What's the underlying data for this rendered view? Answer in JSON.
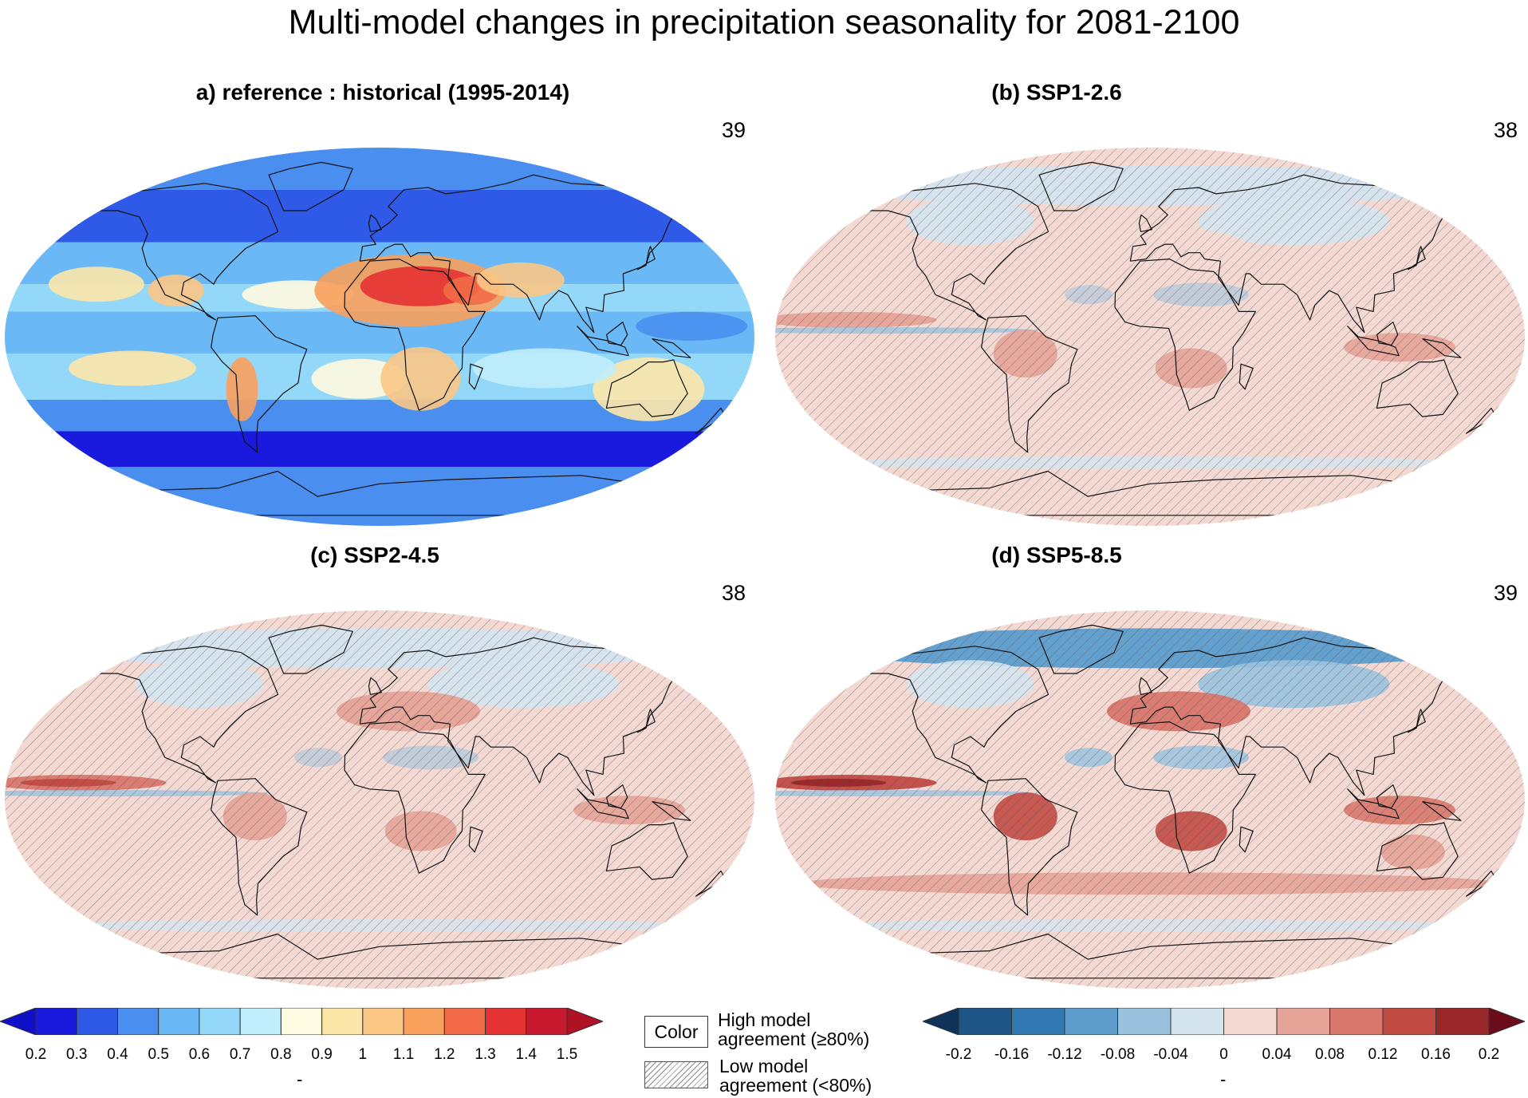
{
  "title": "Multi-model changes in precipitation seasonality for 2081-2100",
  "panels": [
    {
      "id": "a",
      "title": "a) reference : historical (1995-2014)",
      "count": "39",
      "style": "reference"
    },
    {
      "id": "b",
      "title": "(b) SSP1-2.6",
      "count": "38",
      "style": "change-weak"
    },
    {
      "id": "c",
      "title": "(c) SSP2-4.5",
      "count": "38",
      "style": "change-medium"
    },
    {
      "id": "d",
      "title": "(d) SSP5-8.5",
      "count": "39",
      "style": "change-strong"
    }
  ],
  "colorbar_reference": {
    "ticks": [
      "0.2",
      "0.3",
      "0.4",
      "0.5",
      "0.6",
      "0.7",
      "0.8",
      "0.9",
      "1",
      "1.1",
      "1.2",
      "1.3",
      "1.4",
      "1.5"
    ],
    "colors": [
      "#1a1adf",
      "#2f5ae8",
      "#4a8ff0",
      "#6ab8f5",
      "#94d8f9",
      "#c0eefc",
      "#fffbe0",
      "#fde7a8",
      "#fbc785",
      "#f8a05c",
      "#f26a47",
      "#e53233",
      "#c81a2e"
    ],
    "under_color": "#1010c8",
    "over_color": "#b01225",
    "unit": "-"
  },
  "colorbar_change": {
    "ticks": [
      "-0.2",
      "-0.16",
      "-0.12",
      "-0.08",
      "-0.04",
      "0",
      "0.04",
      "0.08",
      "0.12",
      "0.16",
      "0.2"
    ],
    "colors": [
      "#1d5586",
      "#2f78b1",
      "#5c9dcc",
      "#9ac2df",
      "#d4e4ef",
      "#f4d9d3",
      "#e6a397",
      "#d8776b",
      "#c14a43",
      "#992628"
    ],
    "under_color": "#0f3358",
    "over_color": "#6b0c1a",
    "unit": "-"
  },
  "legend": {
    "color_label": "Color",
    "high_agreement": [
      "High model",
      "agreement (≥80%)"
    ],
    "low_agreement": [
      "Low model",
      "agreement (<80%)"
    ]
  }
}
